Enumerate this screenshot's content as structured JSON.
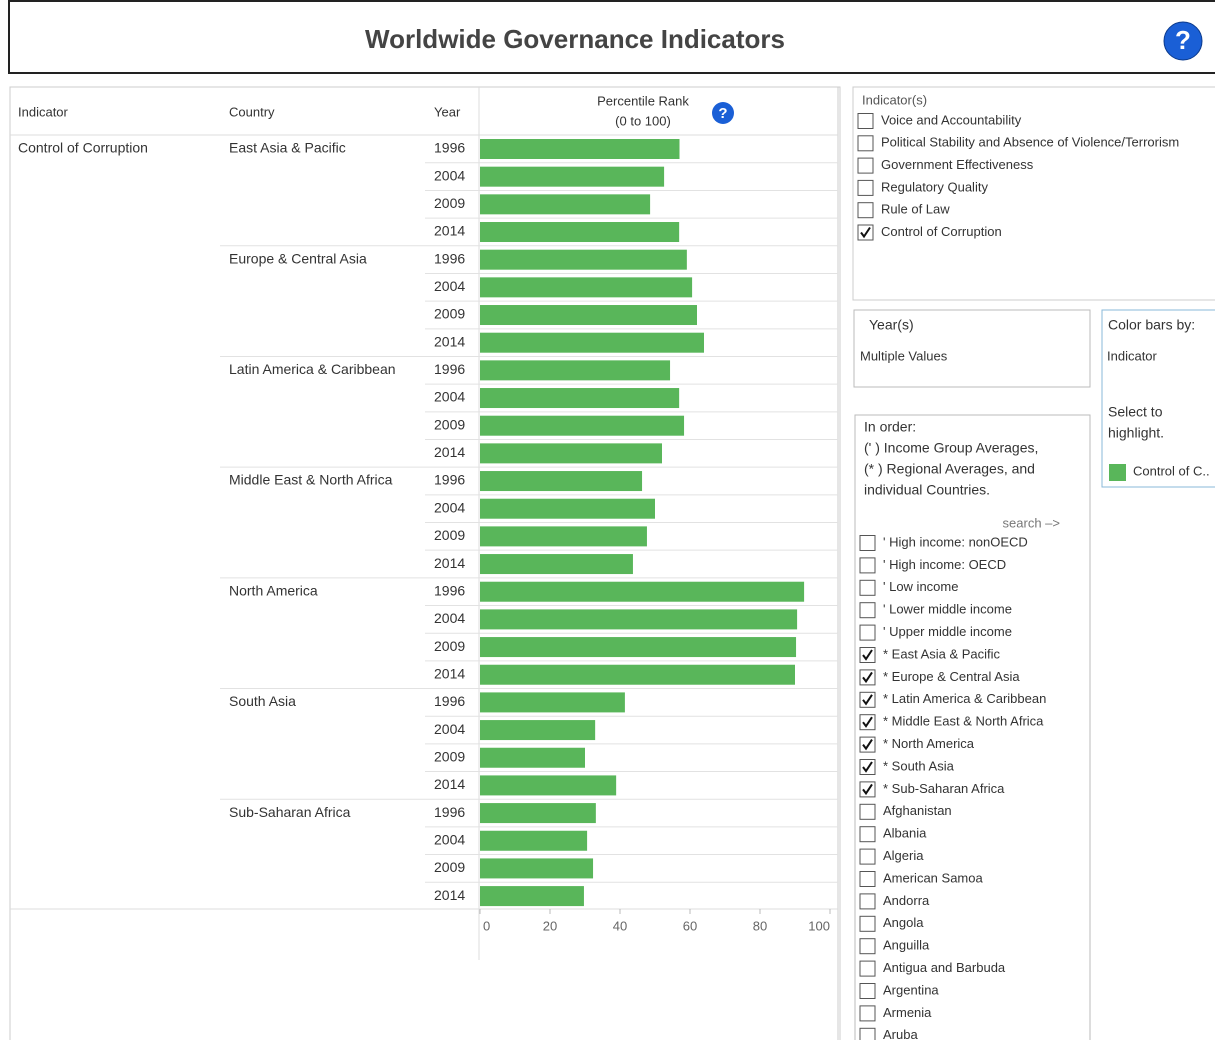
{
  "header": {
    "title": "Worldwide Governance Indicators",
    "help_icon": "?"
  },
  "table": {
    "columns": [
      "Indicator",
      "Country",
      "Year"
    ],
    "indicator": "Control of Corruption"
  },
  "chart_data": {
    "type": "bar",
    "orientation": "horizontal",
    "title_lines": [
      "Percentile Rank",
      "(0 to 100)"
    ],
    "help_icon": "?",
    "color": "#59b65a",
    "groups": [
      {
        "name": "East Asia & Pacific",
        "categories": [
          "1996",
          "2004",
          "2009",
          "2014"
        ],
        "values": [
          57,
          52.6,
          48.6,
          56.9
        ]
      },
      {
        "name": "Europe & Central Asia",
        "categories": [
          "1996",
          "2004",
          "2009",
          "2014"
        ],
        "values": [
          59.1,
          60.6,
          62,
          64
        ]
      },
      {
        "name": "Latin America & Caribbean",
        "categories": [
          "1996",
          "2004",
          "2009",
          "2014"
        ],
        "values": [
          54.3,
          56.9,
          58.3,
          52
        ]
      },
      {
        "name": "Middle East & North Africa",
        "categories": [
          "1996",
          "2004",
          "2009",
          "2014"
        ],
        "values": [
          46.3,
          50,
          47.7,
          43.7
        ]
      },
      {
        "name": "North America",
        "categories": [
          "1996",
          "2004",
          "2009",
          "2014"
        ],
        "values": [
          92.6,
          90.6,
          90.3,
          90
        ]
      },
      {
        "name": "South Asia",
        "categories": [
          "1996",
          "2004",
          "2009",
          "2014"
        ],
        "values": [
          41.4,
          32.9,
          30,
          38.9
        ]
      },
      {
        "name": "Sub-Saharan Africa",
        "categories": [
          "1996",
          "2004",
          "2009",
          "2014"
        ],
        "values": [
          33.1,
          30.6,
          32.3,
          29.7
        ]
      }
    ],
    "xlim": [
      0,
      100
    ],
    "xticks": [
      0,
      20,
      40,
      60,
      80,
      100
    ]
  },
  "indicators_filter": {
    "title": "Indicator(s)",
    "items": [
      {
        "label": "Voice and Accountability",
        "checked": false
      },
      {
        "label": "Political Stability and Absence of Violence/Terrorism",
        "checked": false
      },
      {
        "label": "Government Effectiveness",
        "checked": false
      },
      {
        "label": "Regulatory Quality",
        "checked": false
      },
      {
        "label": "Rule of Law",
        "checked": false
      },
      {
        "label": "Control of Corruption",
        "checked": true
      }
    ]
  },
  "years_filter": {
    "title": "Year(s)",
    "value": "Multiple Values"
  },
  "color_legend": {
    "title": "Color bars by:",
    "field": "Indicator",
    "hint_lines": [
      "Select to",
      "highlight."
    ],
    "item": "Control of C..",
    "color": "#59b65a"
  },
  "country_filter": {
    "intro_lines": [
      "In order:",
      "(' ) Income Group Averages,",
      "(* ) Regional Averages, and",
      "individual Countries."
    ],
    "search": "search –>",
    "items": [
      {
        "label": "' High income: nonOECD",
        "checked": false
      },
      {
        "label": "' High income: OECD",
        "checked": false
      },
      {
        "label": "' Low income",
        "checked": false
      },
      {
        "label": "' Lower middle income",
        "checked": false
      },
      {
        "label": "' Upper middle income",
        "checked": false
      },
      {
        "label": "* East Asia & Pacific",
        "checked": true
      },
      {
        "label": "* Europe & Central Asia",
        "checked": true
      },
      {
        "label": "* Latin America & Caribbean",
        "checked": true
      },
      {
        "label": "* Middle East & North Africa",
        "checked": true
      },
      {
        "label": "* North America",
        "checked": true
      },
      {
        "label": "* South Asia",
        "checked": true
      },
      {
        "label": "* Sub-Saharan Africa",
        "checked": true
      },
      {
        "label": "Afghanistan",
        "checked": false
      },
      {
        "label": "Albania",
        "checked": false
      },
      {
        "label": "Algeria",
        "checked": false
      },
      {
        "label": "American Samoa",
        "checked": false
      },
      {
        "label": "Andorra",
        "checked": false
      },
      {
        "label": "Angola",
        "checked": false
      },
      {
        "label": "Anguilla",
        "checked": false
      },
      {
        "label": "Antigua and Barbuda",
        "checked": false
      },
      {
        "label": "Argentina",
        "checked": false
      },
      {
        "label": "Armenia",
        "checked": false
      },
      {
        "label": "Aruba",
        "checked": false
      }
    ]
  }
}
